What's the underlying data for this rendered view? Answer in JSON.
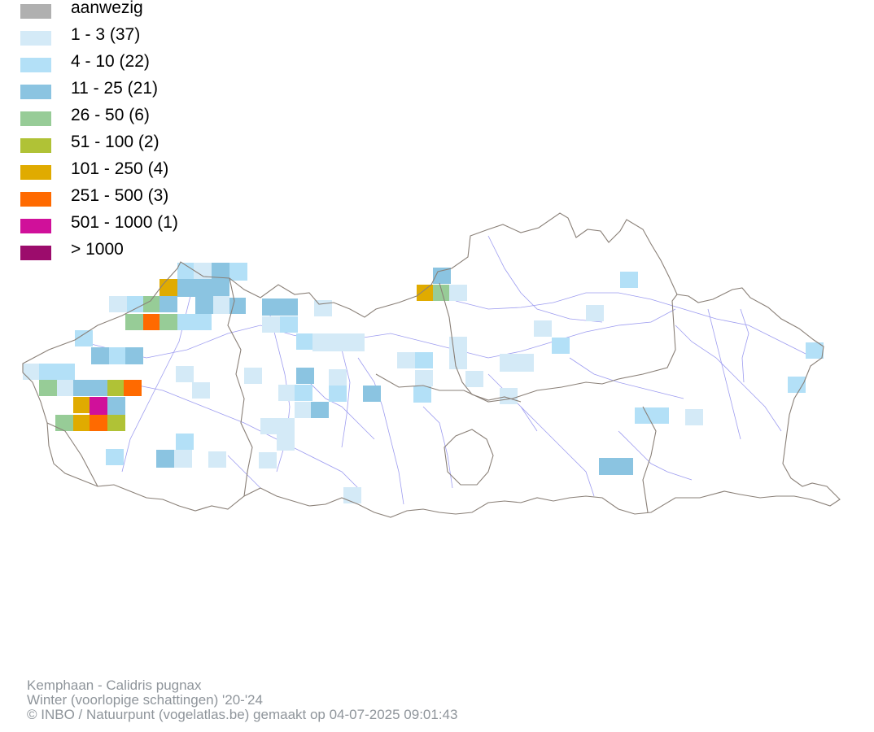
{
  "legend": {
    "items": [
      {
        "label": "aanwezig",
        "color": "#b0b0b0"
      },
      {
        "label": "1 - 3 (37)",
        "color": "#d4eaf7"
      },
      {
        "label": "4 - 10 (22)",
        "color": "#b3e0f7"
      },
      {
        "label": "11 - 25 (21)",
        "color": "#8bc4e1"
      },
      {
        "label": "26 - 50 (6)",
        "color": "#97cc97"
      },
      {
        "label": "51 - 100 (2)",
        "color": "#b0c236"
      },
      {
        "label": "101 - 250 (4)",
        "color": "#e0ab00"
      },
      {
        "label": "251 - 500 (3)",
        "color": "#ff6a00"
      },
      {
        "label": "501 - 1000 (1)",
        "color": "#d0109a"
      },
      {
        "label": "> 1000",
        "color": "#9c0c6c"
      }
    ]
  },
  "map": {
    "border_color": "#8a8078",
    "river_color": "#9d9cf0"
  },
  "caption": {
    "species": "Kemphaan - Calidris pugnax",
    "season": "Winter (voorlopige schattingen) '20-'24",
    "credit": "© INBO / Natuurpunt (vogelatlas.be) gemaakt op 04-07-2025 09:01:43"
  }
}
